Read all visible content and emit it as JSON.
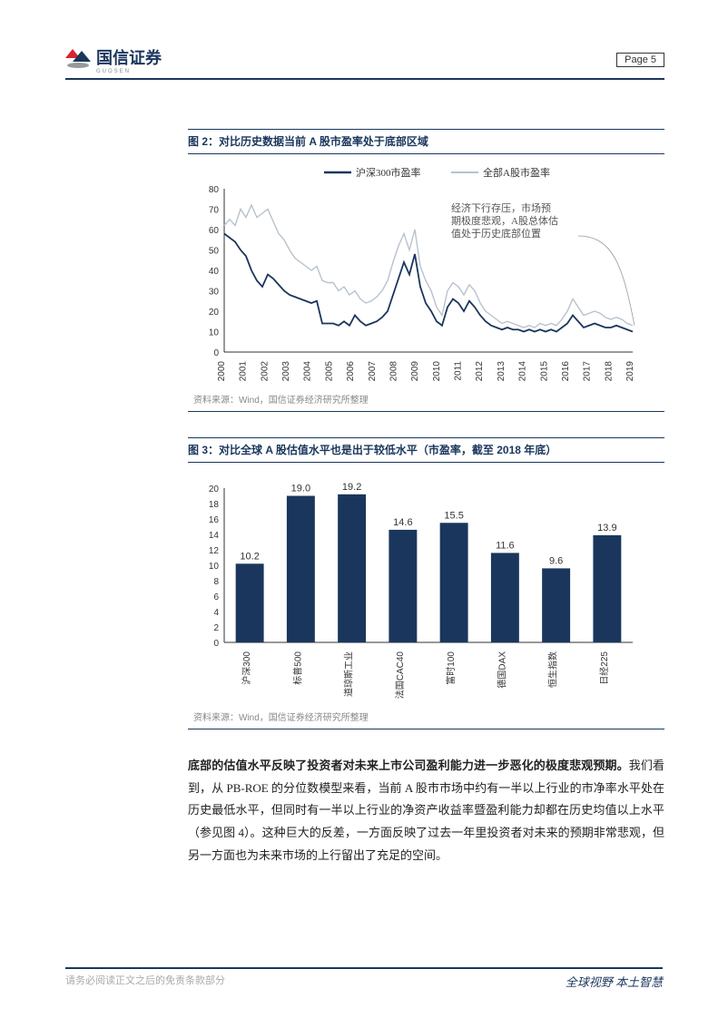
{
  "header": {
    "brand": "国信证券",
    "brand_sub": "GUOSEN",
    "page_label": "Page  5"
  },
  "figure2": {
    "title": "图 2：对比历史数据当前 A 股市盈率处于底部区域",
    "legend": {
      "s1": "沪深300市盈率",
      "s2": "全部A股市盈率"
    },
    "annotation_lines": [
      "经济下行存压，市场预",
      "期极度悲观，A股总体估",
      "值处于历史底部位置"
    ],
    "ylim": [
      0,
      80
    ],
    "ytick_step": 10,
    "x_categories": [
      "2000",
      "2001",
      "2002",
      "2003",
      "2004",
      "2005",
      "2006",
      "2007",
      "2008",
      "2009",
      "2010",
      "2011",
      "2012",
      "2013",
      "2014",
      "2015",
      "2016",
      "2017",
      "2018",
      "2019"
    ],
    "colors": {
      "s1": "#1a365d",
      "s2": "#b8c2cc",
      "grid": "#e0e0e0",
      "axis": "#333333",
      "bg": "#ffffff"
    },
    "line_width": {
      "s1": 1.8,
      "s2": 1.4
    },
    "series_s1": [
      58,
      56,
      54,
      50,
      47,
      40,
      35,
      32,
      38,
      36,
      33,
      30,
      28,
      27,
      26,
      25,
      24,
      25,
      14,
      14,
      14,
      13,
      15,
      13,
      18,
      15,
      13,
      14,
      15,
      17,
      20,
      28,
      36,
      44,
      38,
      48,
      32,
      24,
      20,
      15,
      13,
      22,
      26,
      24,
      20,
      25,
      22,
      18,
      15,
      13,
      12,
      11,
      12,
      11,
      11,
      10,
      11,
      10,
      11,
      10,
      11,
      10,
      12,
      14,
      18,
      15,
      12,
      13,
      14,
      13,
      12,
      12,
      13,
      12,
      11,
      10
    ],
    "series_s2": [
      62,
      65,
      62,
      70,
      66,
      72,
      66,
      68,
      70,
      64,
      58,
      55,
      50,
      46,
      44,
      42,
      40,
      42,
      35,
      34,
      34,
      30,
      32,
      28,
      30,
      26,
      24,
      25,
      27,
      30,
      35,
      44,
      52,
      58,
      50,
      60,
      42,
      35,
      30,
      22,
      18,
      30,
      34,
      32,
      28,
      33,
      30,
      24,
      20,
      18,
      16,
      14,
      15,
      14,
      13,
      12,
      13,
      12,
      14,
      13,
      14,
      13,
      16,
      20,
      26,
      22,
      18,
      19,
      20,
      19,
      17,
      16,
      17,
      16,
      14,
      13
    ],
    "source": "资料来源：Wind，国信证券经济研究所整理"
  },
  "figure3": {
    "title": "图 3：对比全球 A 股估值水平也是出于较低水平（市盈率，截至 2018 年底）",
    "ylim": [
      0,
      20
    ],
    "ytick_step": 2,
    "categories": [
      "沪深300",
      "标普500",
      "道琼斯工业",
      "法国CAC40",
      "富时100",
      "德国DAX",
      "恒生指数",
      "日经225"
    ],
    "values": [
      10.2,
      19.0,
      19.2,
      14.6,
      15.5,
      11.6,
      9.6,
      13.9
    ],
    "bar_color": "#1a365d",
    "bg": "#ffffff",
    "grid_color": "#e0e0e0",
    "bar_width": 0.55,
    "label_fontsize": 11,
    "source": "资料来源：Wind，国信证券经济研究所整理"
  },
  "body": {
    "bold_part": "底部的估值水平反映了投资者对未来上市公司盈利能力进一步恶化的极度悲观预期。",
    "rest": "我们看到，从 PB-ROE 的分位数模型来看，当前 A 股市市场中约有一半以上行业的市净率水平处在历史最低水平，但同时有一半以上行业的净资产收益率暨盈利能力却都在历史均值以上水平（参见图 4）。这种巨大的反差，一方面反映了过去一年里投资者对未来的预期非常悲观，但另一方面也为未来市场的上行留出了充足的空间。"
  },
  "footer": {
    "left": "请务必阅读正文之后的免责条款部分",
    "right": "全球视野  本土智慧"
  }
}
